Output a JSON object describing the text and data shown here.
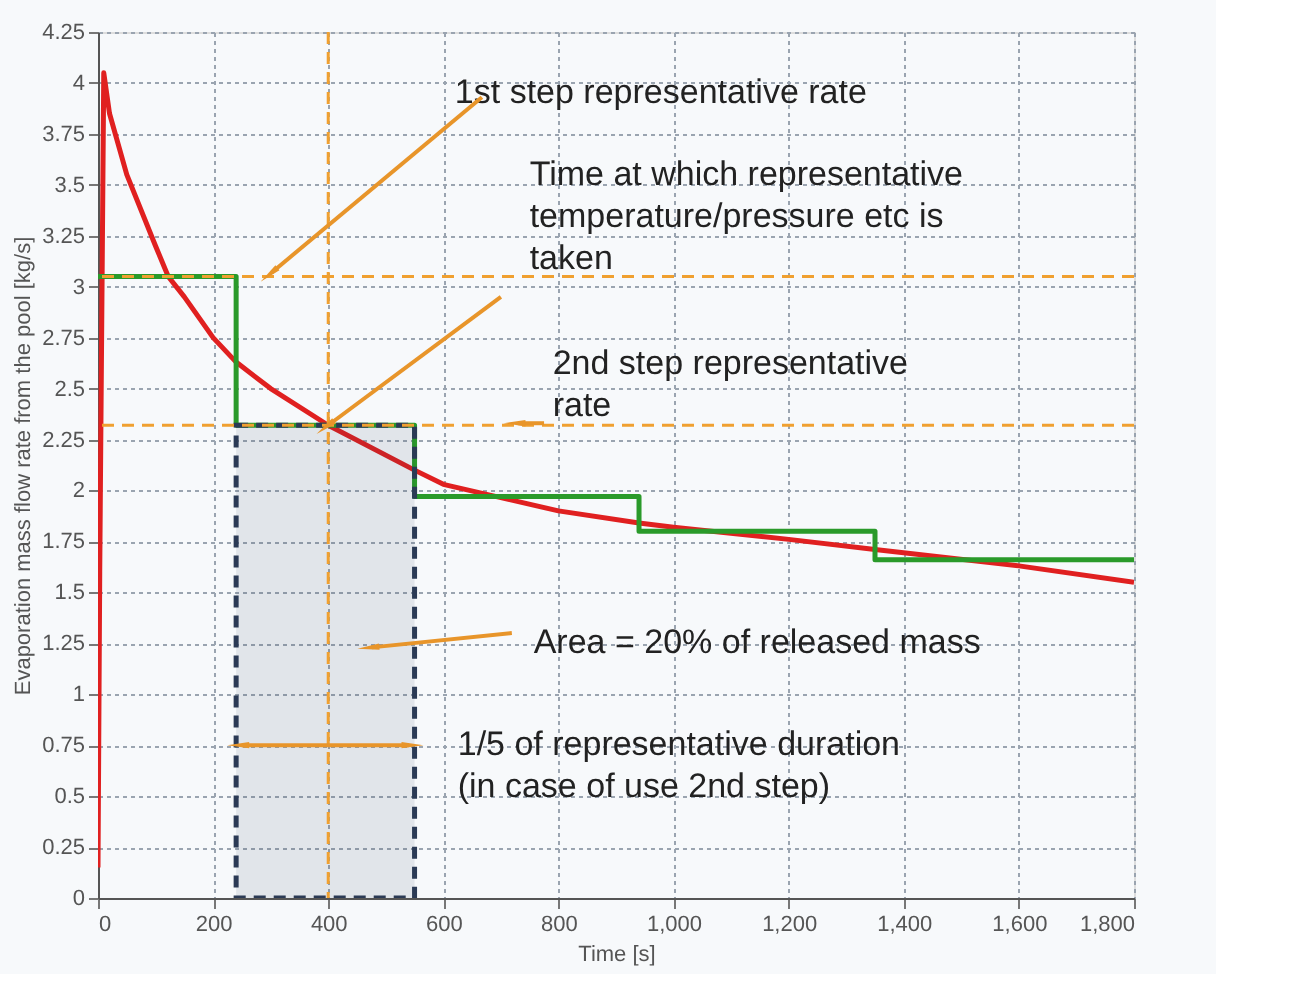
{
  "chart_data": {
    "type": "line",
    "xlabel": "Time [s]",
    "ylabel": "Evaporation mass flow rate from the pool [kg/s]",
    "xlim": [
      0,
      1800
    ],
    "ylim": [
      0,
      4.25
    ],
    "xticks": [
      0,
      200,
      400,
      600,
      800,
      {
        "value": 1000,
        "label": "1,000"
      },
      {
        "value": 1200,
        "label": "1,200"
      },
      {
        "value": 1400,
        "label": "1,400"
      },
      {
        "value": 1600,
        "label": "1,600"
      },
      {
        "value": 1800,
        "label": "1,800"
      }
    ],
    "yticks": [
      0,
      0.25,
      0.5,
      0.75,
      1,
      1.25,
      1.5,
      1.75,
      2,
      2.25,
      2.5,
      2.75,
      3,
      3.25,
      3.5,
      3.75,
      4,
      4.25
    ],
    "grid": true,
    "series": [
      {
        "color": "#e02020",
        "line_style": "solid",
        "x": [
          0,
          3,
          10,
          20,
          50,
          100,
          122,
          150,
          200,
          240,
          300,
          400,
          550,
          600,
          800,
          940,
          1000,
          1200,
          1350,
          1600,
          1800
        ],
        "values": [
          0.15,
          1.6,
          4.05,
          3.85,
          3.55,
          3.2,
          3.05,
          2.95,
          2.75,
          2.63,
          2.5,
          2.32,
          2.1,
          2.03,
          1.9,
          1.84,
          1.82,
          1.76,
          1.71,
          1.63,
          1.55
        ]
      },
      {
        "type": "step",
        "color": "#2a9a2a",
        "line_style": "solid",
        "x": [
          0,
          240,
          550,
          940,
          1350,
          1800
        ],
        "values": [
          3.05,
          2.32,
          1.97,
          1.8,
          1.66,
          1.66
        ]
      },
      {
        "type": "area",
        "color": "#2b3a55",
        "line_style": "dashed",
        "x": [
          240,
          550
        ],
        "values": [
          2.32,
          2.32
        ]
      }
    ],
    "ref_lines": [
      {
        "axis": "y",
        "value": 3.05,
        "color": "#f0a030",
        "line_style": "dashed"
      },
      {
        "axis": "y",
        "value": 2.32,
        "color": "#f0a030",
        "line_style": "dashed"
      },
      {
        "axis": "x",
        "value": 400,
        "color": "#f0a030",
        "line_style": "dashed"
      }
    ],
    "annotations": [
      {
        "text": "1st step representative rate",
        "x": 302,
        "y": 3.07
      },
      {
        "text": "Time at which representative\ntemperature/pressure etc is\ntaken",
        "x": 400,
        "y": 2.32
      },
      {
        "text": "2nd step representative\nrate",
        "x": 730,
        "y": 2.33
      },
      "Area = 20% of released mass",
      "1/5 of representative duration\n(in case of use 2nd step)"
    ]
  }
}
